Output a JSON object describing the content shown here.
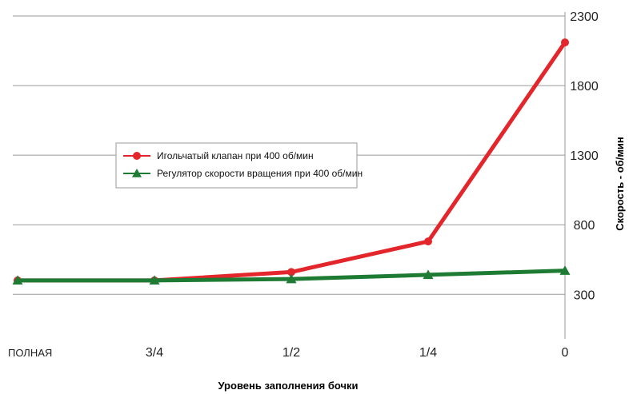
{
  "chart_data": {
    "type": "line",
    "categories": [
      "ПОЛНАЯ",
      "3/4",
      "1/2",
      "1/4",
      "0"
    ],
    "series": [
      {
        "name": "Игольчатый клапан при 400 об/мин",
        "color": "#e3262b",
        "marker": "circle",
        "values": [
          400,
          400,
          460,
          680,
          2110
        ]
      },
      {
        "name": "Регулятор скорости вращения при 400 об/мин",
        "color": "#1e7b34",
        "marker": "triangle",
        "values": [
          400,
          400,
          410,
          440,
          470
        ]
      }
    ],
    "xlabel": "Уровень заполнения бочки",
    "ylabel": "Скорость - об/мин",
    "yticks": [
      300,
      800,
      1300,
      1800,
      2300
    ],
    "ylim": [
      -20,
      2300
    ],
    "grid": true,
    "y_axis_side": "right",
    "legend_position": "center-left"
  }
}
